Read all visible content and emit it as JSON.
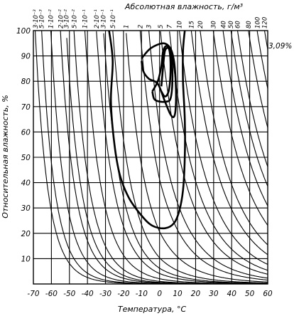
{
  "chart_data": {
    "type": "line",
    "xlabel": "Температура, °С",
    "ylabel": "Относительная влажность, %",
    "top_axis_title": "Абсолютная влажность, г/м³",
    "xlim": [
      -70,
      60
    ],
    "ylim": [
      0,
      100
    ],
    "x_ticks": [
      "-70",
      "-60",
      "-50",
      "-40",
      "-30",
      "-20",
      "-10",
      "0",
      "10",
      "20",
      "30",
      "40",
      "50",
      "60"
    ],
    "y_ticks": [
      "10",
      "20",
      "30",
      "40",
      "50",
      "60",
      "70",
      "80",
      "90",
      "100"
    ],
    "absolute_humidity_labels": [
      {
        "label": "3·10⁻³",
        "value": 0.003
      },
      {
        "label": "5·10⁻³",
        "value": 0.005
      },
      {
        "label": "1·10⁻²",
        "value": 0.01
      },
      {
        "label": "2·10⁻²",
        "value": 0.02
      },
      {
        "label": "3·10⁻²",
        "value": 0.03
      },
      {
        "label": "5·10⁻²",
        "value": 0.05
      },
      {
        "label": "1·10⁻¹",
        "value": 0.1
      },
      {
        "label": "2·10⁻¹",
        "value": 0.2
      },
      {
        "label": "3·10⁻¹",
        "value": 0.3
      },
      {
        "label": "5·10⁻¹",
        "value": 0.5
      },
      {
        "label": "1",
        "value": 1
      },
      {
        "label": "2",
        "value": 2
      },
      {
        "label": "3",
        "value": 3
      },
      {
        "label": "5",
        "value": 5
      },
      {
        "label": "7",
        "value": 7
      },
      {
        "label": "10",
        "value": 10
      },
      {
        "label": "15",
        "value": 15
      },
      {
        "label": "20",
        "value": 20
      },
      {
        "label": "30",
        "value": 30
      },
      {
        "label": "40",
        "value": 40
      },
      {
        "label": "50",
        "value": 50
      },
      {
        "label": "60",
        "value": 60
      },
      {
        "label": "80",
        "value": 80
      },
      {
        "label": "100",
        "value": 100
      },
      {
        "label": "120",
        "value": 120
      }
    ],
    "annotations": [
      {
        "text": "3,09%"
      }
    ],
    "contours": [
      {
        "points": [
          [
            -28,
            100
          ],
          [
            -26,
            88
          ],
          [
            -27,
            72
          ],
          [
            -25,
            55
          ],
          [
            -22,
            43
          ],
          [
            -17,
            34
          ],
          [
            -10,
            27
          ],
          [
            -4,
            23
          ],
          [
            3,
            22
          ],
          [
            8,
            24
          ],
          [
            11,
            29
          ],
          [
            13,
            37
          ],
          [
            14,
            50
          ],
          [
            14,
            65
          ],
          [
            13,
            80
          ],
          [
            13,
            92
          ],
          [
            14,
            100
          ]
        ]
      },
      {
        "points": [
          [
            -10,
            89
          ],
          [
            -5,
            93
          ],
          [
            2,
            95
          ],
          [
            6,
            93
          ],
          [
            8,
            88
          ],
          [
            9,
            79
          ],
          [
            9,
            70
          ],
          [
            8,
            66
          ],
          [
            6,
            67
          ],
          [
            3,
            72
          ],
          [
            -1,
            79
          ],
          [
            -6,
            81
          ],
          [
            -9,
            84
          ],
          [
            -10,
            88
          ]
        ]
      },
      {
        "points": [
          [
            -4,
            76
          ],
          [
            -1,
            80
          ],
          [
            1,
            86
          ],
          [
            2,
            92
          ],
          [
            4,
            94
          ],
          [
            6,
            92
          ],
          [
            7,
            86
          ],
          [
            7,
            78
          ],
          [
            6,
            73
          ],
          [
            4,
            72
          ],
          [
            0,
            72
          ],
          [
            -3,
            73
          ],
          [
            -4,
            76
          ]
        ]
      },
      {
        "points": [
          [
            1,
            78
          ],
          [
            2,
            86
          ],
          [
            3,
            92
          ],
          [
            5,
            93
          ],
          [
            6,
            89
          ],
          [
            6,
            82
          ],
          [
            5,
            76
          ],
          [
            3,
            74
          ],
          [
            1,
            76
          ]
        ]
      }
    ],
    "grid": true
  }
}
